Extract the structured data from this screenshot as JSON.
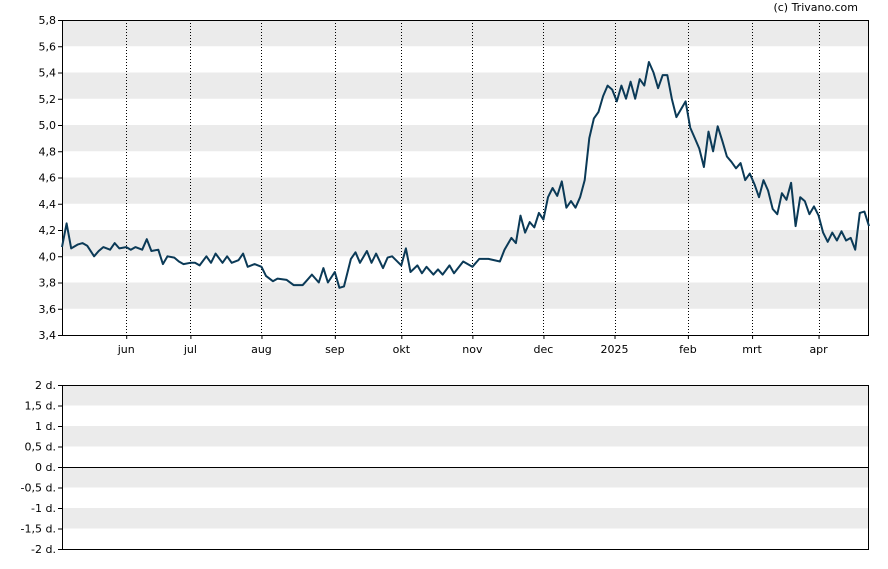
{
  "copyright": "(c) Trivano.com",
  "colors": {
    "line": "#0b3a57",
    "band": "#ebebeb",
    "grid": "#000000"
  },
  "chart_data": [
    {
      "type": "line",
      "title": "",
      "ylim": [
        3.4,
        5.8
      ],
      "y_ticks": [
        {
          "v": 3.4,
          "label": "3,4"
        },
        {
          "v": 3.6,
          "label": "3,6"
        },
        {
          "v": 3.8,
          "label": "3,8"
        },
        {
          "v": 4.0,
          "label": "4,0"
        },
        {
          "v": 4.2,
          "label": "4,2"
        },
        {
          "v": 4.4,
          "label": "4,4"
        },
        {
          "v": 4.6,
          "label": "4,6"
        },
        {
          "v": 4.8,
          "label": "4,8"
        },
        {
          "v": 5.0,
          "label": "5,0"
        },
        {
          "v": 5.2,
          "label": "5,2"
        },
        {
          "v": 5.4,
          "label": "5,4"
        },
        {
          "v": 5.6,
          "label": "5,6"
        },
        {
          "v": 5.8,
          "label": "5,8"
        }
      ],
      "x_start": "2024-05-06",
      "x_end": "2025-04-23",
      "x_ticks": [
        {
          "date": "2024-06-03",
          "label": "jun"
        },
        {
          "date": "2024-07-01",
          "label": "jul"
        },
        {
          "date": "2024-08-01",
          "label": "aug"
        },
        {
          "date": "2024-09-02",
          "label": "sep"
        },
        {
          "date": "2024-10-01",
          "label": "okt"
        },
        {
          "date": "2024-11-01",
          "label": "nov"
        },
        {
          "date": "2024-12-02",
          "label": "dec"
        },
        {
          "date": "2025-01-02",
          "label": "2025"
        },
        {
          "date": "2025-02-03",
          "label": "feb"
        },
        {
          "date": "2025-03-03",
          "label": "mrt"
        },
        {
          "date": "2025-04-01",
          "label": "apr"
        }
      ],
      "grid": true,
      "series": [
        {
          "points": [
            [
              "2024-05-06",
              4.07
            ],
            [
              "2024-05-08",
              4.25
            ],
            [
              "2024-05-10",
              4.06
            ],
            [
              "2024-05-13",
              4.09
            ],
            [
              "2024-05-15",
              4.1
            ],
            [
              "2024-05-17",
              4.08
            ],
            [
              "2024-05-20",
              4.0
            ],
            [
              "2024-05-22",
              4.04
            ],
            [
              "2024-05-24",
              4.07
            ],
            [
              "2024-05-27",
              4.05
            ],
            [
              "2024-05-29",
              4.1
            ],
            [
              "2024-05-31",
              4.06
            ],
            [
              "2024-06-03",
              4.07
            ],
            [
              "2024-06-05",
              4.05
            ],
            [
              "2024-06-07",
              4.07
            ],
            [
              "2024-06-10",
              4.05
            ],
            [
              "2024-06-12",
              4.13
            ],
            [
              "2024-06-14",
              4.04
            ],
            [
              "2024-06-17",
              4.05
            ],
            [
              "2024-06-19",
              3.94
            ],
            [
              "2024-06-21",
              4.0
            ],
            [
              "2024-06-24",
              3.99
            ],
            [
              "2024-06-26",
              3.96
            ],
            [
              "2024-06-28",
              3.94
            ],
            [
              "2024-07-01",
              3.95
            ],
            [
              "2024-07-03",
              3.95
            ],
            [
              "2024-07-05",
              3.93
            ],
            [
              "2024-07-08",
              4.0
            ],
            [
              "2024-07-10",
              3.95
            ],
            [
              "2024-07-12",
              4.02
            ],
            [
              "2024-07-15",
              3.95
            ],
            [
              "2024-07-17",
              4.0
            ],
            [
              "2024-07-19",
              3.95
            ],
            [
              "2024-07-22",
              3.97
            ],
            [
              "2024-07-24",
              4.02
            ],
            [
              "2024-07-26",
              3.92
            ],
            [
              "2024-07-29",
              3.94
            ],
            [
              "2024-08-01",
              3.92
            ],
            [
              "2024-08-03",
              3.85
            ],
            [
              "2024-08-06",
              3.81
            ],
            [
              "2024-08-08",
              3.83
            ],
            [
              "2024-08-12",
              3.82
            ],
            [
              "2024-08-15",
              3.78
            ],
            [
              "2024-08-19",
              3.78
            ],
            [
              "2024-08-21",
              3.82
            ],
            [
              "2024-08-23",
              3.86
            ],
            [
              "2024-08-26",
              3.8
            ],
            [
              "2024-08-28",
              3.91
            ],
            [
              "2024-08-30",
              3.8
            ],
            [
              "2024-09-02",
              3.88
            ],
            [
              "2024-09-04",
              3.76
            ],
            [
              "2024-09-06",
              3.77
            ],
            [
              "2024-09-09",
              3.98
            ],
            [
              "2024-09-11",
              4.03
            ],
            [
              "2024-09-13",
              3.95
            ],
            [
              "2024-09-16",
              4.04
            ],
            [
              "2024-09-18",
              3.95
            ],
            [
              "2024-09-20",
              4.02
            ],
            [
              "2024-09-23",
              3.91
            ],
            [
              "2024-09-25",
              3.99
            ],
            [
              "2024-09-27",
              4.0
            ],
            [
              "2024-10-01",
              3.93
            ],
            [
              "2024-10-03",
              4.06
            ],
            [
              "2024-10-05",
              3.88
            ],
            [
              "2024-10-08",
              3.93
            ],
            [
              "2024-10-10",
              3.87
            ],
            [
              "2024-10-12",
              3.92
            ],
            [
              "2024-10-15",
              3.86
            ],
            [
              "2024-10-17",
              3.9
            ],
            [
              "2024-10-19",
              3.86
            ],
            [
              "2024-10-22",
              3.93
            ],
            [
              "2024-10-24",
              3.87
            ],
            [
              "2024-10-28",
              3.96
            ],
            [
              "2024-11-01",
              3.92
            ],
            [
              "2024-11-04",
              3.98
            ],
            [
              "2024-11-08",
              3.98
            ],
            [
              "2024-11-13",
              3.96
            ],
            [
              "2024-11-15",
              4.05
            ],
            [
              "2024-11-18",
              4.14
            ],
            [
              "2024-11-20",
              4.1
            ],
            [
              "2024-11-22",
              4.31
            ],
            [
              "2024-11-24",
              4.18
            ],
            [
              "2024-11-26",
              4.26
            ],
            [
              "2024-11-28",
              4.22
            ],
            [
              "2024-11-30",
              4.33
            ],
            [
              "2024-12-02",
              4.28
            ],
            [
              "2024-12-04",
              4.45
            ],
            [
              "2024-12-06",
              4.52
            ],
            [
              "2024-12-08",
              4.46
            ],
            [
              "2024-12-10",
              4.57
            ],
            [
              "2024-12-12",
              4.37
            ],
            [
              "2024-12-14",
              4.42
            ],
            [
              "2024-12-16",
              4.37
            ],
            [
              "2024-12-18",
              4.45
            ],
            [
              "2024-12-20",
              4.58
            ],
            [
              "2024-12-22",
              4.9
            ],
            [
              "2024-12-24",
              5.05
            ],
            [
              "2024-12-26",
              5.1
            ],
            [
              "2024-12-28",
              5.22
            ],
            [
              "2024-12-30",
              5.3
            ],
            [
              "2025-01-01",
              5.27
            ],
            [
              "2025-01-03",
              5.18
            ],
            [
              "2025-01-05",
              5.3
            ],
            [
              "2025-01-07",
              5.2
            ],
            [
              "2025-01-09",
              5.33
            ],
            [
              "2025-01-11",
              5.2
            ],
            [
              "2025-01-13",
              5.35
            ],
            [
              "2025-01-15",
              5.3
            ],
            [
              "2025-01-17",
              5.48
            ],
            [
              "2025-01-19",
              5.4
            ],
            [
              "2025-01-21",
              5.28
            ],
            [
              "2025-01-23",
              5.38
            ],
            [
              "2025-01-25",
              5.38
            ],
            [
              "2025-01-27",
              5.2
            ],
            [
              "2025-01-29",
              5.06
            ],
            [
              "2025-01-31",
              5.12
            ],
            [
              "2025-02-02",
              5.18
            ],
            [
              "2025-02-04",
              4.98
            ],
            [
              "2025-02-06",
              4.9
            ],
            [
              "2025-02-08",
              4.82
            ],
            [
              "2025-02-10",
              4.68
            ],
            [
              "2025-02-12",
              4.95
            ],
            [
              "2025-02-14",
              4.8
            ],
            [
              "2025-02-16",
              4.99
            ],
            [
              "2025-02-18",
              4.88
            ],
            [
              "2025-02-20",
              4.76
            ],
            [
              "2025-02-22",
              4.72
            ],
            [
              "2025-02-24",
              4.67
            ],
            [
              "2025-02-26",
              4.71
            ],
            [
              "2025-02-28",
              4.58
            ],
            [
              "2025-03-02",
              4.63
            ],
            [
              "2025-03-04",
              4.55
            ],
            [
              "2025-03-06",
              4.45
            ],
            [
              "2025-03-08",
              4.58
            ],
            [
              "2025-03-10",
              4.5
            ],
            [
              "2025-03-12",
              4.36
            ],
            [
              "2025-03-14",
              4.32
            ],
            [
              "2025-03-16",
              4.48
            ],
            [
              "2025-03-18",
              4.43
            ],
            [
              "2025-03-20",
              4.56
            ],
            [
              "2025-03-22",
              4.23
            ],
            [
              "2025-03-24",
              4.45
            ],
            [
              "2025-03-26",
              4.42
            ],
            [
              "2025-03-28",
              4.32
            ],
            [
              "2025-03-30",
              4.38
            ],
            [
              "2025-04-01",
              4.31
            ],
            [
              "2025-04-03",
              4.18
            ],
            [
              "2025-04-05",
              4.11
            ],
            [
              "2025-04-07",
              4.18
            ],
            [
              "2025-04-09",
              4.12
            ],
            [
              "2025-04-11",
              4.19
            ],
            [
              "2025-04-13",
              4.12
            ],
            [
              "2025-04-15",
              4.14
            ],
            [
              "2025-04-17",
              4.05
            ],
            [
              "2025-04-19",
              4.33
            ],
            [
              "2025-04-21",
              4.34
            ],
            [
              "2025-04-23",
              4.23
            ]
          ]
        }
      ]
    },
    {
      "type": "line",
      "ylim": [
        -2,
        2
      ],
      "y_ticks": [
        {
          "v": 2,
          "label": "2 d."
        },
        {
          "v": 1.5,
          "label": "1,5 d."
        },
        {
          "v": 1,
          "label": "1 d."
        },
        {
          "v": 0.5,
          "label": "0,5 d."
        },
        {
          "v": 0,
          "label": "0 d."
        },
        {
          "v": -0.5,
          "label": "-0,5 d."
        },
        {
          "v": -1,
          "label": "-1 d."
        },
        {
          "v": -1.5,
          "label": "-1,5 d."
        },
        {
          "v": -2,
          "label": "-2 d."
        }
      ],
      "zero_line": 0,
      "series": []
    }
  ]
}
